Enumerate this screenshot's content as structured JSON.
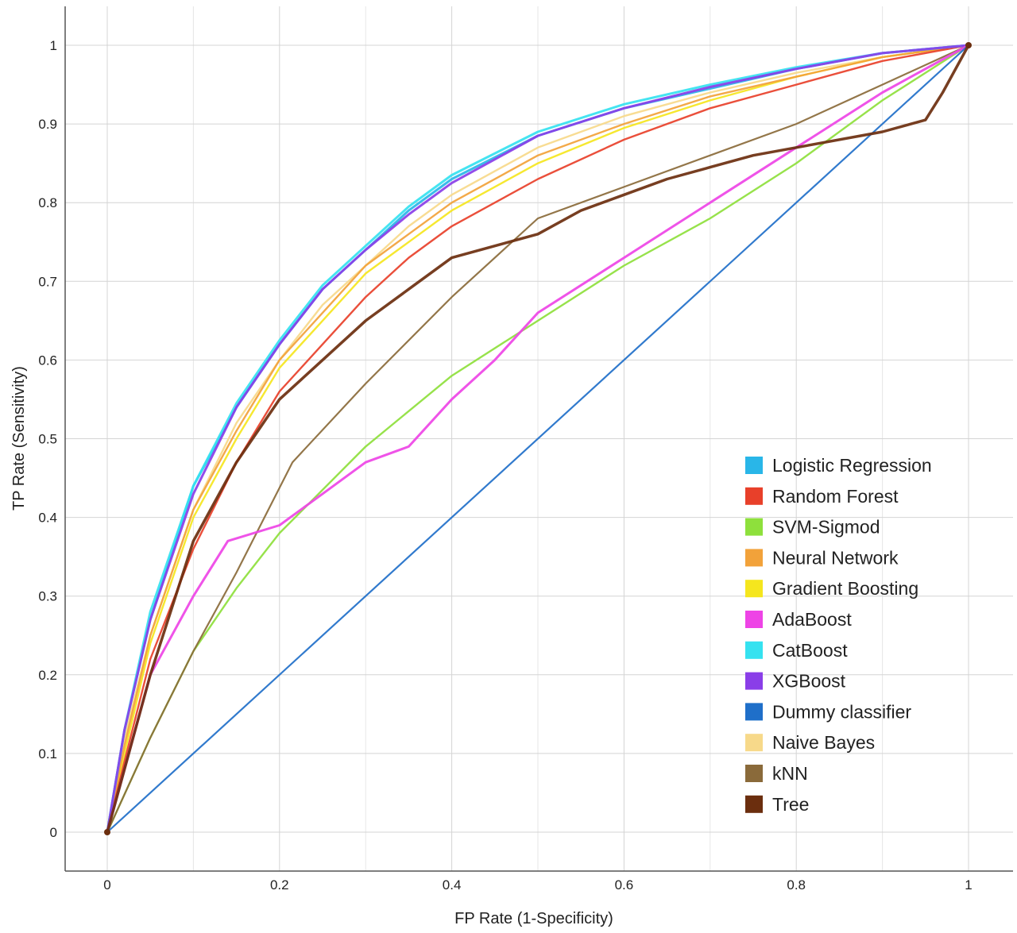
{
  "chart_data": {
    "type": "line",
    "title": "",
    "xlabel": "FP Rate (1-Specificity)",
    "ylabel": "TP Rate (Sensitivity)",
    "xlim": [
      0,
      1
    ],
    "ylim": [
      0,
      1
    ],
    "x_ticks": [
      "0",
      "0.2",
      "0.4",
      "0.6",
      "0.8",
      "1"
    ],
    "y_ticks": [
      "0",
      "0.1",
      "0.2",
      "0.3",
      "0.4",
      "0.5",
      "0.6",
      "0.7",
      "0.8",
      "0.9",
      "1"
    ],
    "grid": true,
    "legend_position": "bottom-right",
    "series": [
      {
        "name": "Logistic Regression",
        "color": "#29b6e8",
        "x": [
          0,
          0.02,
          0.05,
          0.1,
          0.15,
          0.2,
          0.25,
          0.3,
          0.35,
          0.4,
          0.5,
          0.6,
          0.7,
          0.8,
          0.9,
          1
        ],
        "y": [
          0,
          0.13,
          0.27,
          0.44,
          0.54,
          0.62,
          0.69,
          0.74,
          0.79,
          0.83,
          0.885,
          0.92,
          0.945,
          0.97,
          0.99,
          1
        ]
      },
      {
        "name": "Random Forest",
        "color": "#e8402a",
        "x": [
          0,
          0.02,
          0.05,
          0.1,
          0.15,
          0.2,
          0.25,
          0.3,
          0.35,
          0.4,
          0.5,
          0.6,
          0.7,
          0.8,
          0.9,
          1
        ],
        "y": [
          0,
          0.09,
          0.22,
          0.36,
          0.47,
          0.56,
          0.62,
          0.68,
          0.73,
          0.77,
          0.83,
          0.88,
          0.92,
          0.95,
          0.98,
          1
        ]
      },
      {
        "name": "SVM-Sigmod",
        "color": "#8ee03c",
        "x": [
          0,
          0.05,
          0.1,
          0.15,
          0.2,
          0.3,
          0.4,
          0.5,
          0.6,
          0.7,
          0.8,
          0.9,
          1
        ],
        "y": [
          0,
          0.12,
          0.23,
          0.31,
          0.38,
          0.49,
          0.58,
          0.65,
          0.72,
          0.78,
          0.85,
          0.93,
          1
        ]
      },
      {
        "name": "Neural Network",
        "color": "#f2a23a",
        "x": [
          0,
          0.02,
          0.05,
          0.1,
          0.15,
          0.2,
          0.25,
          0.3,
          0.35,
          0.4,
          0.5,
          0.6,
          0.7,
          0.8,
          0.9,
          1
        ],
        "y": [
          0,
          0.11,
          0.25,
          0.41,
          0.51,
          0.6,
          0.66,
          0.72,
          0.76,
          0.8,
          0.86,
          0.9,
          0.935,
          0.96,
          0.985,
          1
        ]
      },
      {
        "name": "Gradient Boosting",
        "color": "#f5e61e",
        "x": [
          0,
          0.02,
          0.05,
          0.1,
          0.15,
          0.2,
          0.25,
          0.3,
          0.35,
          0.4,
          0.5,
          0.6,
          0.7,
          0.8,
          0.9,
          1
        ],
        "y": [
          0,
          0.1,
          0.24,
          0.4,
          0.5,
          0.59,
          0.65,
          0.71,
          0.75,
          0.79,
          0.85,
          0.895,
          0.93,
          0.96,
          0.985,
          1
        ]
      },
      {
        "name": "AdaBoost",
        "color": "#ee44e6",
        "x": [
          0,
          0.05,
          0.1,
          0.14,
          0.2,
          0.25,
          0.3,
          0.35,
          0.4,
          0.45,
          0.5,
          0.6,
          0.7,
          0.8,
          0.9,
          1
        ],
        "y": [
          0,
          0.2,
          0.3,
          0.37,
          0.39,
          0.43,
          0.47,
          0.49,
          0.55,
          0.6,
          0.66,
          0.73,
          0.8,
          0.87,
          0.94,
          1
        ]
      },
      {
        "name": "CatBoost",
        "color": "#35e2f0",
        "x": [
          0,
          0.02,
          0.05,
          0.1,
          0.15,
          0.2,
          0.25,
          0.3,
          0.35,
          0.4,
          0.5,
          0.6,
          0.7,
          0.8,
          0.9,
          1
        ],
        "y": [
          0,
          0.13,
          0.28,
          0.44,
          0.545,
          0.625,
          0.695,
          0.745,
          0.795,
          0.835,
          0.89,
          0.925,
          0.95,
          0.972,
          0.99,
          1
        ]
      },
      {
        "name": "XGBoost",
        "color": "#8a3ee8",
        "x": [
          0,
          0.02,
          0.05,
          0.1,
          0.15,
          0.2,
          0.25,
          0.3,
          0.35,
          0.4,
          0.5,
          0.6,
          0.7,
          0.8,
          0.9,
          1
        ],
        "y": [
          0,
          0.13,
          0.27,
          0.43,
          0.54,
          0.62,
          0.69,
          0.74,
          0.785,
          0.825,
          0.885,
          0.92,
          0.947,
          0.97,
          0.99,
          1
        ]
      },
      {
        "name": "Dummy classifier",
        "color": "#1f6fc9",
        "x": [
          0,
          1
        ],
        "y": [
          0,
          1
        ]
      },
      {
        "name": "Naive Bayes",
        "color": "#f7d98a",
        "x": [
          0,
          0.02,
          0.05,
          0.1,
          0.15,
          0.2,
          0.25,
          0.3,
          0.35,
          0.4,
          0.5,
          0.6,
          0.7,
          0.8,
          0.9,
          1
        ],
        "y": [
          0,
          0.12,
          0.25,
          0.41,
          0.52,
          0.6,
          0.67,
          0.72,
          0.77,
          0.81,
          0.87,
          0.91,
          0.94,
          0.965,
          0.985,
          1
        ]
      },
      {
        "name": "kNN",
        "color": "#8a6a3a",
        "x": [
          0,
          0.05,
          0.1,
          0.15,
          0.215,
          0.3,
          0.4,
          0.5,
          0.6,
          0.7,
          0.8,
          0.9,
          1
        ],
        "y": [
          0,
          0.12,
          0.23,
          0.33,
          0.47,
          0.57,
          0.68,
          0.78,
          0.82,
          0.86,
          0.9,
          0.95,
          1
        ]
      },
      {
        "name": "Tree",
        "color": "#6b2e0e",
        "x": [
          0,
          0.02,
          0.05,
          0.1,
          0.15,
          0.2,
          0.25,
          0.3,
          0.35,
          0.4,
          0.5,
          0.55,
          0.6,
          0.65,
          0.7,
          0.75,
          0.8,
          0.9,
          0.95,
          0.97,
          1
        ],
        "y": [
          0,
          0.08,
          0.2,
          0.37,
          0.47,
          0.55,
          0.6,
          0.65,
          0.69,
          0.73,
          0.76,
          0.79,
          0.81,
          0.83,
          0.845,
          0.86,
          0.87,
          0.89,
          0.905,
          0.94,
          1
        ]
      }
    ]
  }
}
